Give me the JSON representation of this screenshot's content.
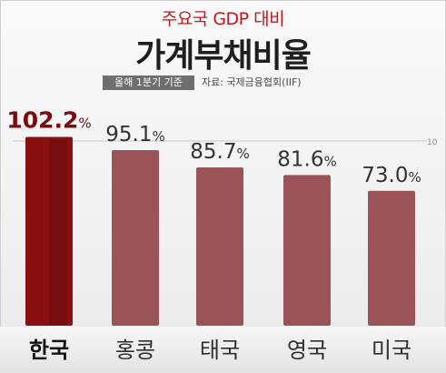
{
  "header": {
    "subtitle": "주요국 GDP 대비",
    "title": "가계부채비율",
    "badge": "올해 1분기 기준",
    "source": "자료: 국제금융협회(IIF)"
  },
  "colors": {
    "highlight": "#8a0f12",
    "bar": "#9a5457",
    "subtitle": "#c4161c",
    "label": "#333333",
    "highlight_label": "#7a0a0e"
  },
  "chart_data": {
    "type": "bar",
    "categories": [
      "한국",
      "홍콩",
      "태국",
      "영국",
      "미국"
    ],
    "values": [
      102.2,
      95.1,
      85.7,
      81.6,
      73.0
    ],
    "value_labels": [
      "102.2%",
      "95.1%",
      "85.7%",
      "81.6%",
      "73.0%"
    ],
    "highlight_index": 0,
    "reference_line": {
      "value": 100,
      "label": "10"
    },
    "ylim": [
      0,
      110
    ],
    "grid": false,
    "legend": "none"
  }
}
